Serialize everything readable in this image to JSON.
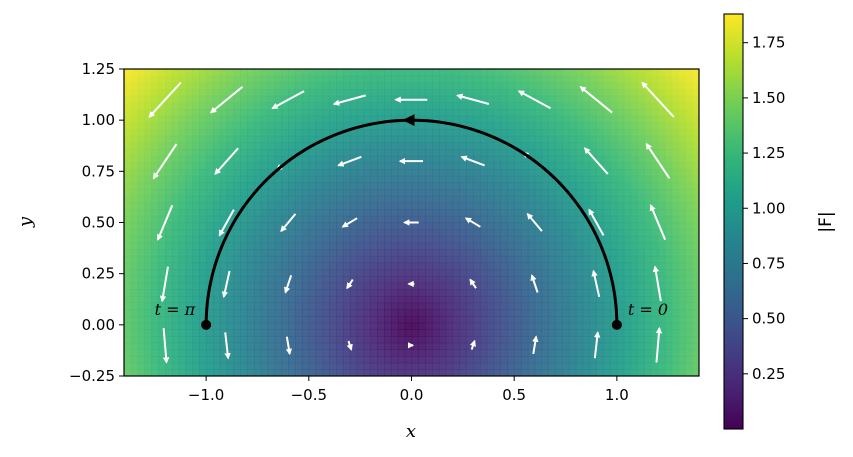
{
  "chart_data": {
    "type": "heatmap",
    "title": "",
    "xlabel": "x",
    "ylabel": "y",
    "xlim": [
      -1.4,
      1.4
    ],
    "ylim": [
      -0.25,
      1.25
    ],
    "xticks": [
      -1.0,
      -0.5,
      0.0,
      0.5,
      1.0
    ],
    "xtick_labels": [
      "−1.0",
      "−0.5",
      "0.0",
      "0.5",
      "1.0"
    ],
    "yticks": [
      -0.25,
      0.0,
      0.25,
      0.5,
      0.75,
      1.0,
      1.25
    ],
    "ytick_labels": [
      "−0.25",
      "0.00",
      "0.25",
      "0.50",
      "0.75",
      "1.00",
      "1.25"
    ],
    "colormap": "viridis",
    "colorbar": {
      "label": "|F|",
      "range": [
        0.0,
        1.88
      ],
      "ticks": [
        0.25,
        0.5,
        0.75,
        1.0,
        1.25,
        1.5,
        1.75
      ],
      "tick_labels": [
        "0.25",
        "0.50",
        "0.75",
        "1.00",
        "1.25",
        "1.50",
        "1.75"
      ]
    },
    "field": {
      "magnitude": "|F| = sqrt(x^2 + y^2)",
      "vector_color": "#ffffff",
      "quiver_x": [
        -1.2,
        -0.9,
        -0.6,
        -0.3,
        0.0,
        0.3,
        0.6,
        0.9,
        1.2
      ],
      "quiver_y": [
        -0.1,
        0.2,
        0.5,
        0.8,
        1.1
      ]
    },
    "path": {
      "description": "upper unit semicircle traversed counter-clockwise",
      "color": "#000000",
      "t_range": [
        0,
        3.14159
      ],
      "start_point": [
        1,
        0
      ],
      "end_point": [
        -1,
        0
      ],
      "direction_marker_point": [
        0,
        1
      ],
      "annotations": [
        {
          "text": "t = 0",
          "x": 1.0,
          "y": 0.0
        },
        {
          "text": "t = π",
          "x": -1.0,
          "y": 0.0
        }
      ]
    },
    "grid": false,
    "legend": "none"
  }
}
